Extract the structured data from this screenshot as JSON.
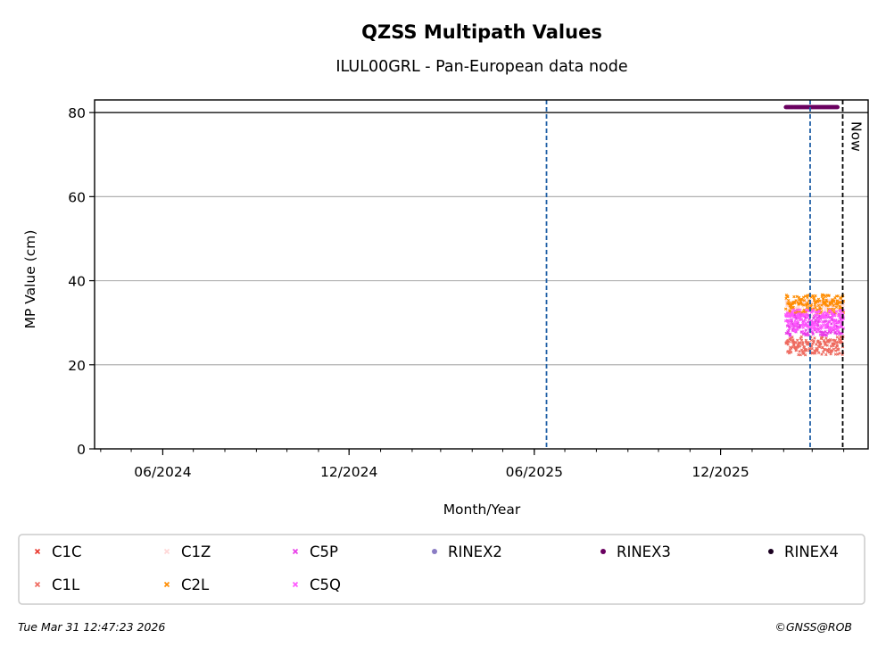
{
  "chart_data": {
    "type": "scatter",
    "title": "QZSS Multipath Values",
    "subtitle": "ILUL00GRL - Pan-European data node",
    "xlabel": "Month/Year",
    "ylabel": "MP Value (cm)",
    "ylim": [
      0,
      83
    ],
    "xlim": [
      "2024-03-26",
      "2026-04-25"
    ],
    "yticks": [
      0,
      20,
      40,
      60,
      80
    ],
    "xticks": [
      {
        "date": "2024-06-01",
        "label": "06/2024"
      },
      {
        "date": "2024-12-01",
        "label": "12/2024"
      },
      {
        "date": "2025-06-01",
        "label": "06/2025"
      },
      {
        "date": "2025-12-01",
        "label": "12/2025"
      }
    ],
    "grid": "horizontal",
    "reference_line": {
      "y": 80
    },
    "vertical_markers": [
      {
        "date": "2025-06-13",
        "color": "#1f5fa6",
        "label": ""
      },
      {
        "date": "2026-02-27",
        "color": "#1f5fa6",
        "label": ""
      },
      {
        "date": "2026-03-31",
        "color": "#000000",
        "label": "Now"
      }
    ],
    "legend_position": "bottom",
    "series": [
      {
        "name": "C1C",
        "color": "#e8382e",
        "marker": "x",
        "mean": null,
        "spread": 0,
        "date_range": null
      },
      {
        "name": "C1L",
        "color": "#ee6a5f",
        "marker": "x",
        "mean": 24.5,
        "spread": 2.2,
        "date_range": [
          "2026-02-03",
          "2026-03-31"
        ]
      },
      {
        "name": "C1Z",
        "color": "#ffd7d7",
        "marker": "x",
        "mean": 33.5,
        "spread": 2.0,
        "date_range": [
          "2026-02-03",
          "2026-03-31"
        ]
      },
      {
        "name": "C2L",
        "color": "#ff8c00",
        "marker": "x",
        "mean": 34.5,
        "spread": 2.2,
        "date_range": [
          "2026-02-03",
          "2026-03-31"
        ]
      },
      {
        "name": "C5P",
        "color": "#e83ae8",
        "marker": "x",
        "mean": 29.5,
        "spread": 2.6,
        "date_range": [
          "2026-02-03",
          "2026-03-31"
        ]
      },
      {
        "name": "C5Q",
        "color": "#ff55ff",
        "marker": "x",
        "mean": 30.5,
        "spread": 2.6,
        "date_range": [
          "2026-02-03",
          "2026-03-31"
        ]
      },
      {
        "name": "RINEX2",
        "color": "#8a7cc4",
        "marker": "o",
        "mean": null,
        "spread": 0,
        "date_range": null
      },
      {
        "name": "RINEX3",
        "color": "#6a0060",
        "marker": "o",
        "mean": 81.3,
        "spread": 0,
        "date_range": [
          "2026-02-03",
          "2026-03-26"
        ]
      },
      {
        "name": "RINEX4",
        "color": "#1a0020",
        "marker": "o",
        "mean": null,
        "spread": 0,
        "date_range": null
      }
    ]
  },
  "footer": {
    "timestamp": "Tue Mar 31 12:47:23 2026",
    "credit": "©GNSS@ROB"
  }
}
